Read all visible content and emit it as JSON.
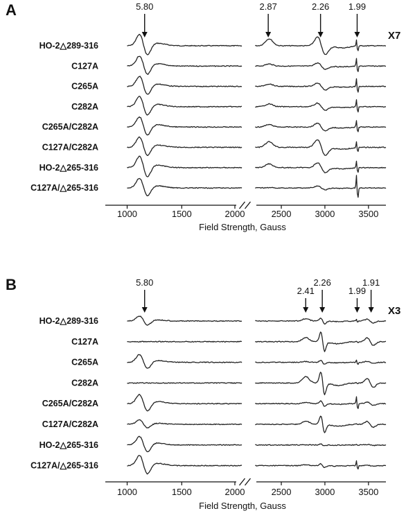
{
  "chart_data": [
    {
      "type": "line",
      "panel": "A",
      "xlabel": "Field Strength, Gauss",
      "xlim": [
        800,
        3700
      ],
      "axis_break": [
        2050,
        2150
      ],
      "x_ticks": [
        1000,
        1500,
        2000,
        2500,
        3000,
        3500
      ],
      "scale_label": "X7",
      "g_values": [
        {
          "label": "5.80",
          "x": 1160
        },
        {
          "label": "2.87",
          "x": 2350
        },
        {
          "label": "2.26",
          "x": 2950
        },
        {
          "label": "1.99",
          "x": 3370
        }
      ],
      "series": [
        {
          "name": "HO-2△289-316",
          "features": {
            "g580": 1.0,
            "g287": 1.0,
            "g226": 1.0,
            "g199": 0.8,
            "g191": 0.0
          }
        },
        {
          "name": "C127A",
          "features": {
            "g580": 0.9,
            "g287": 0.3,
            "g226": 0.35,
            "g199": 1.0,
            "g191": 0.0
          }
        },
        {
          "name": "C265A",
          "features": {
            "g580": 0.9,
            "g287": 0.35,
            "g226": 0.4,
            "g199": 1.0,
            "g191": 0.0
          }
        },
        {
          "name": "C282A",
          "features": {
            "g580": 0.9,
            "g287": 0.4,
            "g226": 0.4,
            "g199": 0.9,
            "g191": 0.0
          }
        },
        {
          "name": "C265A/C282A",
          "features": {
            "g580": 0.9,
            "g287": 0.35,
            "g226": 0.45,
            "g199": 0.8,
            "g191": 0.0
          }
        },
        {
          "name": "C127A/C282A",
          "features": {
            "g580": 0.9,
            "g287": 0.8,
            "g226": 0.9,
            "g199": 0.7,
            "g191": 0.0
          }
        },
        {
          "name": "HO-2△265-316",
          "features": {
            "g580": 1.0,
            "g287": 0.55,
            "g226": 0.55,
            "g199": 0.8,
            "g191": 0.0
          }
        },
        {
          "name": "C127A/△265-316",
          "features": {
            "g580": 0.85,
            "g287": 0.05,
            "g226": 0.2,
            "g199": 1.6,
            "g191": 0.0
          }
        }
      ]
    },
    {
      "type": "line",
      "panel": "B",
      "xlabel": "Field Strength, Gauss",
      "xlim": [
        800,
        3700
      ],
      "axis_break": [
        2050,
        2150
      ],
      "x_ticks": [
        1000,
        1500,
        2000,
        2500,
        3000,
        3500
      ],
      "scale_label": "X3",
      "g_values": [
        {
          "label": "5.80",
          "x": 1160
        },
        {
          "label": "2.41",
          "x": 2780
        },
        {
          "label": "2.26",
          "x": 2970
        },
        {
          "label": "1.99",
          "x": 3370
        },
        {
          "label": "1.91",
          "x": 3530
        }
      ],
      "series": [
        {
          "name": "HO-2△289-316",
          "features": {
            "g580": 0.45,
            "g287": 0.0,
            "g241": 0.3,
            "g226": 0.3,
            "g199": 0.2,
            "g191": 0.35
          }
        },
        {
          "name": "C127A",
          "features": {
            "g580": 0.0,
            "g287": 0.0,
            "g241": 0.55,
            "g226": 1.0,
            "g199": 0.1,
            "g191": 0.7
          }
        },
        {
          "name": "C265A",
          "features": {
            "g580": 0.7,
            "g287": 0.0,
            "g241": 0.1,
            "g226": 0.2,
            "g199": 0.3,
            "g191": 0.2
          }
        },
        {
          "name": "C282A",
          "features": {
            "g580": 0.0,
            "g287": 0.0,
            "g241": 0.85,
            "g226": 1.2,
            "g199": 0.1,
            "g191": 0.85
          }
        },
        {
          "name": "C265A/C282A",
          "features": {
            "g580": 0.8,
            "g287": 0.0,
            "g241": 0.15,
            "g226": 0.3,
            "g199": 0.9,
            "g191": 0.3
          }
        },
        {
          "name": "C127A/C282A",
          "features": {
            "g580": 0.4,
            "g287": 0.0,
            "g241": 0.45,
            "g226": 0.9,
            "g199": 0.1,
            "g191": 0.55
          }
        },
        {
          "name": "HO-2△265-316",
          "features": {
            "g580": 0.75,
            "g287": 0.0,
            "g241": 0.0,
            "g226": 0.1,
            "g199": 0.1,
            "g191": 0.1
          }
        },
        {
          "name": "C127A/△265-316",
          "features": {
            "g580": 0.9,
            "g287": 0.0,
            "g241": 0.1,
            "g226": 0.2,
            "g199": 0.6,
            "g191": 0.1
          }
        }
      ]
    }
  ]
}
